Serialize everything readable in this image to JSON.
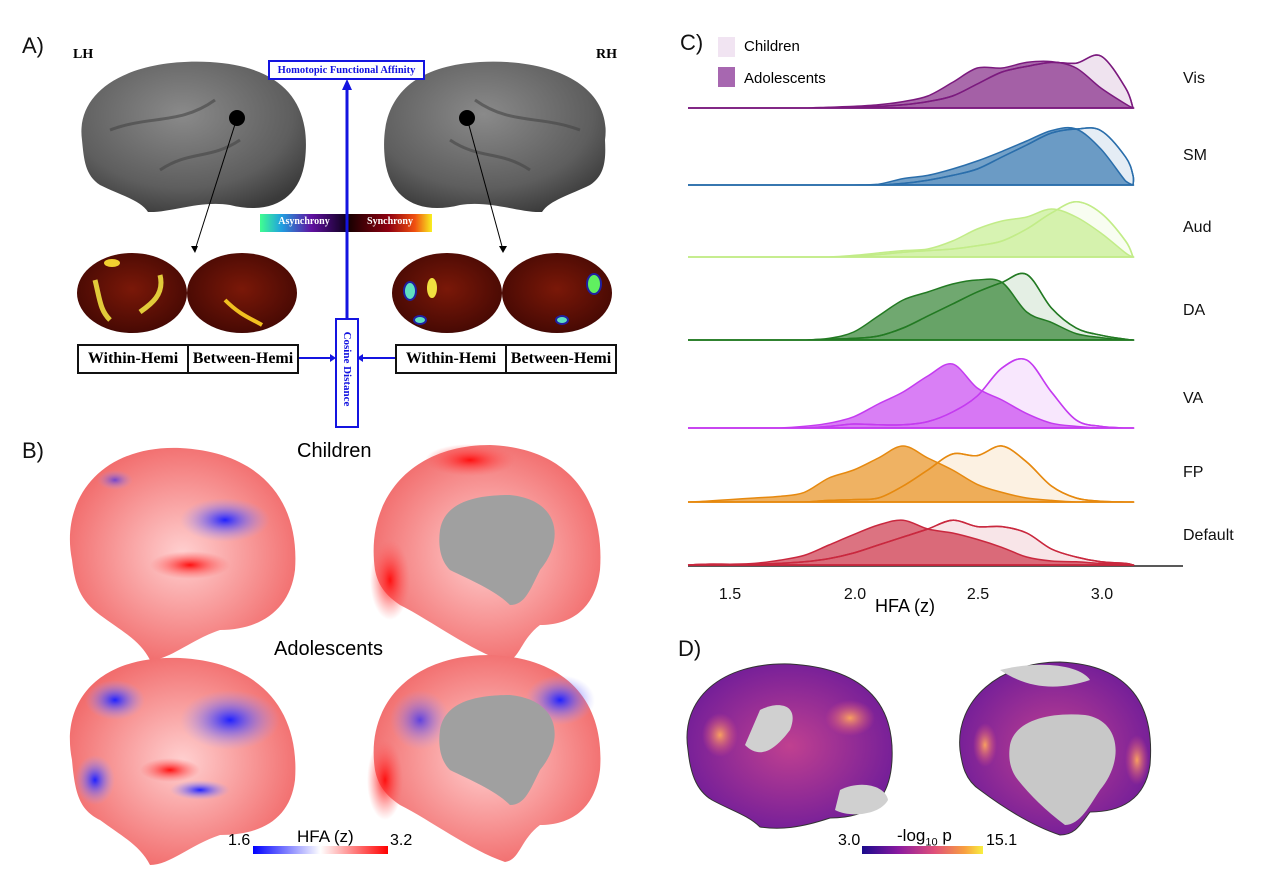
{
  "panel_a": {
    "label": "A)",
    "left_hemi": "LH",
    "right_hemi": "RH",
    "hfa_box": "Homotopic Functional Affinity",
    "cosine_box": "Cosine Distance",
    "colorbar_left": "Asynchrony",
    "colorbar_right": "Synchrony",
    "left_boxes": [
      "Within-Hemi",
      "Between-Hemi"
    ],
    "right_boxes": [
      "Within-Hemi",
      "Between-Hemi"
    ],
    "accent": "#1414e0"
  },
  "panel_b": {
    "label": "B)",
    "row1": "Children",
    "row2": "Adolescents",
    "colorbar": {
      "min": "1.6",
      "max": "3.2",
      "title": "HFA (z)",
      "colors": [
        "#0000ff",
        "#ffffff",
        "#ff0000"
      ]
    }
  },
  "panel_d": {
    "label": "D)",
    "colorbar": {
      "min": "3.0",
      "max": "15.1",
      "title_main": "-log",
      "title_sub": "10",
      "title_end": " p",
      "colors": [
        "#1a0a8c",
        "#8a1aa0",
        "#e0507a",
        "#f8a040",
        "#f8f040"
      ]
    }
  },
  "chart_data": {
    "type": "ridgeline",
    "panel_label": "C)",
    "xlabel": "HFA (z)",
    "xlim": [
      1.33,
      3.13
    ],
    "xticks": [
      "1.5",
      "2.0",
      "2.5",
      "3.0"
    ],
    "legend": {
      "position": "top-left",
      "entries": [
        "Children",
        "Adolescents"
      ]
    },
    "x": [
      1.4,
      1.5,
      1.6,
      1.7,
      1.8,
      1.9,
      2.0,
      2.1,
      2.2,
      2.3,
      2.4,
      2.5,
      2.6,
      2.7,
      2.8,
      2.9,
      3.0,
      3.1,
      3.2
    ],
    "ridges": [
      {
        "name": "Vis",
        "color": "#7b1a7e",
        "children": [
          0,
          0,
          0,
          0,
          0,
          0,
          0.01,
          0.02,
          0.04,
          0.08,
          0.15,
          0.3,
          0.45,
          0.52,
          0.57,
          0.56,
          0.65,
          0.25,
          0
        ],
        "adolescents": [
          0,
          0,
          0,
          0,
          0,
          0.01,
          0.02,
          0.04,
          0.08,
          0.15,
          0.32,
          0.5,
          0.5,
          0.57,
          0.58,
          0.5,
          0.25,
          0.05,
          0
        ]
      },
      {
        "name": "SM",
        "color": "#2a6eab",
        "children": [
          0,
          0,
          0,
          0,
          0,
          0,
          0,
          0,
          0.02,
          0.06,
          0.12,
          0.2,
          0.35,
          0.5,
          0.65,
          0.7,
          0.68,
          0.35,
          0.12
        ],
        "adolescents": [
          0,
          0,
          0,
          0,
          0,
          0,
          0,
          0.01,
          0.08,
          0.12,
          0.2,
          0.3,
          0.42,
          0.55,
          0.68,
          0.7,
          0.45,
          0.05,
          0
        ]
      },
      {
        "name": "Aud",
        "color": "#c2ec88",
        "children": [
          0,
          0,
          0,
          0,
          0,
          0,
          0.01,
          0.03,
          0.06,
          0.08,
          0.1,
          0.14,
          0.2,
          0.35,
          0.55,
          0.69,
          0.55,
          0.2,
          0
        ],
        "adolescents": [
          0,
          0,
          0,
          0,
          0,
          0,
          0.02,
          0.05,
          0.08,
          0.1,
          0.2,
          0.35,
          0.45,
          0.5,
          0.6,
          0.5,
          0.3,
          0.05,
          0
        ]
      },
      {
        "name": "DA",
        "color": "#237a23",
        "children": [
          0,
          0,
          0,
          0,
          0,
          0.01,
          0.02,
          0.05,
          0.15,
          0.3,
          0.45,
          0.6,
          0.72,
          0.82,
          0.4,
          0.15,
          0.06,
          0.01,
          0
        ],
        "adolescents": [
          0,
          0,
          0,
          0,
          0,
          0.02,
          0.1,
          0.3,
          0.5,
          0.6,
          0.7,
          0.75,
          0.72,
          0.35,
          0.22,
          0.08,
          0.03,
          0,
          0
        ]
      },
      {
        "name": "VA",
        "color": "#c43bf0",
        "children": [
          0,
          0,
          0,
          0,
          0,
          0.02,
          0.05,
          0.04,
          0.04,
          0.08,
          0.2,
          0.4,
          0.75,
          0.85,
          0.45,
          0.1,
          0.02,
          0,
          0
        ],
        "adolescents": [
          0,
          0,
          0,
          0,
          0.02,
          0.06,
          0.14,
          0.3,
          0.45,
          0.65,
          0.8,
          0.5,
          0.35,
          0.18,
          0.06,
          0.02,
          0,
          0,
          0
        ]
      },
      {
        "name": "FP",
        "color": "#e6890f",
        "children": [
          0,
          0,
          0,
          0,
          0,
          0.02,
          0.03,
          0.05,
          0.2,
          0.4,
          0.6,
          0.58,
          0.7,
          0.5,
          0.2,
          0.05,
          0.01,
          0,
          0
        ],
        "adolescents": [
          0.01,
          0.03,
          0.05,
          0.07,
          0.12,
          0.3,
          0.4,
          0.55,
          0.7,
          0.55,
          0.4,
          0.22,
          0.12,
          0.05,
          0.02,
          0,
          0,
          0,
          0
        ]
      },
      {
        "name": "Default",
        "color": "#c9283e",
        "children": [
          0.01,
          0.01,
          0.01,
          0.02,
          0.04,
          0.08,
          0.15,
          0.25,
          0.35,
          0.45,
          0.56,
          0.48,
          0.48,
          0.4,
          0.2,
          0.1,
          0.04,
          0.02,
          0
        ],
        "adolescents": [
          0.01,
          0.01,
          0.02,
          0.06,
          0.12,
          0.25,
          0.38,
          0.5,
          0.56,
          0.45,
          0.4,
          0.32,
          0.22,
          0.1,
          0.05,
          0.04,
          0.02,
          0.01,
          0
        ]
      }
    ]
  }
}
